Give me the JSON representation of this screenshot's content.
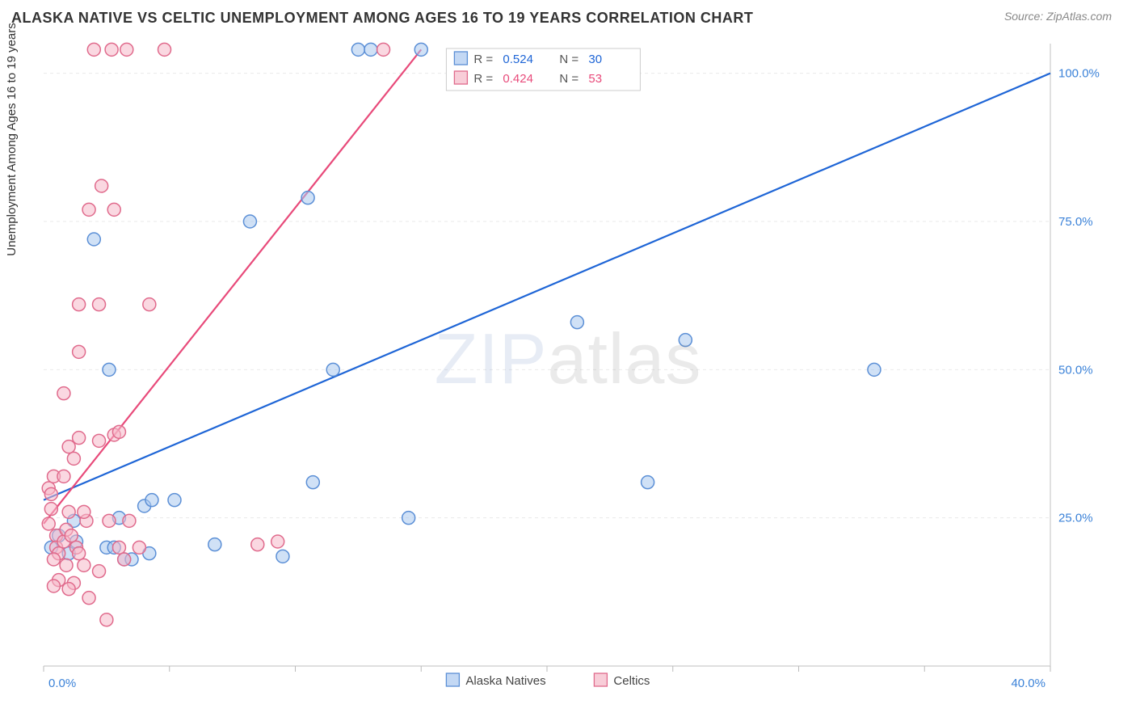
{
  "title": "ALASKA NATIVE VS CELTIC UNEMPLOYMENT AMONG AGES 16 TO 19 YEARS CORRELATION CHART",
  "source": "Source: ZipAtlas.com",
  "ylabel": "Unemployment Among Ages 16 to 19 years",
  "watermark_a": "ZIP",
  "watermark_b": "atlas",
  "chart": {
    "type": "scatter",
    "background_color": "#ffffff",
    "grid_color": "#e9e9e9",
    "border_color": "#cccccc",
    "tick_color": "#bbbbbb",
    "xlim": [
      0,
      40
    ],
    "ylim": [
      0,
      105
    ],
    "x_ticks": [
      0,
      5,
      10,
      15,
      20,
      25,
      30,
      35,
      40
    ],
    "x_tick_labels": {
      "0": "0.0%",
      "40": "40.0%"
    },
    "x_tick_label_color": "#3b82d8",
    "y_gridlines": [
      25,
      50,
      75,
      100
    ],
    "y_tick_labels": {
      "25": "25.0%",
      "50": "50.0%",
      "75": "75.0%",
      "100": "100.0%"
    },
    "y_tick_label_color": "#3b82d8",
    "label_fontsize": 15,
    "tick_fontsize": 15,
    "marker_radius": 8,
    "marker_stroke_width": 1.5,
    "series": [
      {
        "name": "Alaska Natives",
        "fill": "#a9c8ef",
        "fill_opacity": 0.55,
        "stroke": "#5b8fd6",
        "regression": {
          "R": 0.524,
          "N": 30,
          "color": "#1e65d6",
          "width": 2.2,
          "y0": 28,
          "y1": 100,
          "x0": 0,
          "x1": 40
        },
        "points": [
          [
            0.3,
            20
          ],
          [
            0.6,
            22
          ],
          [
            1.0,
            19
          ],
          [
            1.3,
            21
          ],
          [
            2.5,
            20
          ],
          [
            1.2,
            24.5
          ],
          [
            3.0,
            25
          ],
          [
            3.2,
            18
          ],
          [
            2.8,
            20
          ],
          [
            4.0,
            27
          ],
          [
            4.3,
            28
          ],
          [
            5.2,
            28
          ],
          [
            3.5,
            18
          ],
          [
            4.2,
            19
          ],
          [
            6.8,
            20.5
          ],
          [
            9.5,
            18.5
          ],
          [
            2.6,
            50
          ],
          [
            2.0,
            72
          ],
          [
            10.7,
            31
          ],
          [
            8.2,
            75
          ],
          [
            10.5,
            79
          ],
          [
            14.5,
            25
          ],
          [
            12.5,
            104
          ],
          [
            13.0,
            104
          ],
          [
            15.0,
            104
          ],
          [
            21.2,
            58
          ],
          [
            25.5,
            55
          ],
          [
            24.0,
            31
          ],
          [
            33.0,
            50
          ],
          [
            11.5,
            50
          ]
        ]
      },
      {
        "name": "Celtics",
        "fill": "#f5b8c8",
        "fill_opacity": 0.55,
        "stroke": "#e06a8c",
        "regression": {
          "R": 0.424,
          "N": 53,
          "color": "#e84a7a",
          "width": 2.2,
          "y0": 24,
          "y1": 104,
          "x0": 0,
          "x1": 15
        },
        "points": [
          [
            0.2,
            30
          ],
          [
            0.3,
            29
          ],
          [
            0.5,
            22
          ],
          [
            0.5,
            20
          ],
          [
            0.6,
            19
          ],
          [
            0.8,
            21
          ],
          [
            0.9,
            23
          ],
          [
            1.1,
            22
          ],
          [
            1.3,
            20
          ],
          [
            1.4,
            19
          ],
          [
            1.6,
            17
          ],
          [
            1.7,
            24.5
          ],
          [
            0.4,
            32
          ],
          [
            0.8,
            32
          ],
          [
            1.2,
            35
          ],
          [
            1.0,
            37
          ],
          [
            1.4,
            38.5
          ],
          [
            0.8,
            46
          ],
          [
            1.4,
            53
          ],
          [
            2.2,
            61
          ],
          [
            1.4,
            61
          ],
          [
            2.3,
            81
          ],
          [
            1.8,
            77
          ],
          [
            2.8,
            39
          ],
          [
            2.2,
            38
          ],
          [
            3.0,
            39.5
          ],
          [
            2.6,
            24.5
          ],
          [
            3.4,
            24.5
          ],
          [
            3.0,
            20
          ],
          [
            3.8,
            20
          ],
          [
            3.2,
            18
          ],
          [
            2.2,
            16
          ],
          [
            1.2,
            14
          ],
          [
            0.6,
            14.5
          ],
          [
            1.8,
            11.5
          ],
          [
            2.5,
            7.8
          ],
          [
            2.0,
            104
          ],
          [
            2.7,
            104
          ],
          [
            3.3,
            104
          ],
          [
            4.8,
            104
          ],
          [
            4.2,
            61
          ],
          [
            2.8,
            77
          ],
          [
            8.5,
            20.5
          ],
          [
            9.3,
            21
          ],
          [
            13.5,
            104
          ],
          [
            1.0,
            26
          ],
          [
            1.6,
            26
          ],
          [
            0.4,
            18
          ],
          [
            1.0,
            13
          ],
          [
            0.4,
            13.5
          ],
          [
            0.9,
            17
          ],
          [
            0.2,
            24
          ],
          [
            0.3,
            26.5
          ]
        ]
      }
    ],
    "stats_box": {
      "border_color": "#cccccc",
      "bg": "#ffffff",
      "label_color_r": "#1e65d6",
      "label_color_text": "#555555"
    },
    "bottom_legend": {
      "items": [
        "Alaska Natives",
        "Celtics"
      ]
    }
  }
}
